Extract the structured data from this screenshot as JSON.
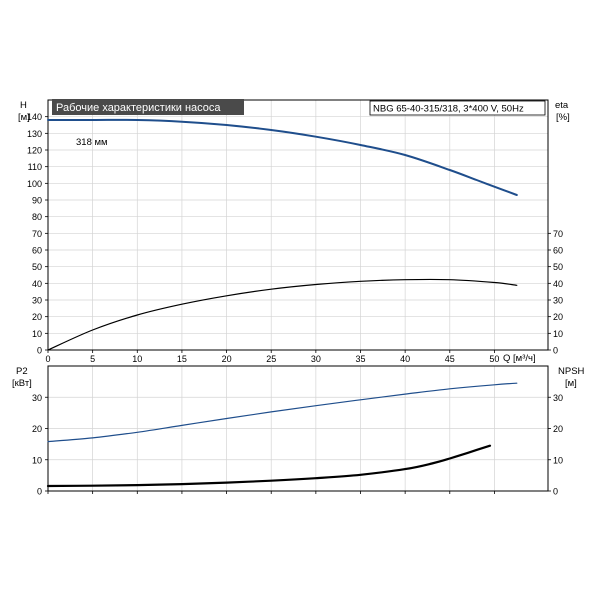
{
  "chart_data": [
    {
      "type": "line",
      "title": "Рабочие характеристики насоса",
      "model_label": "NBG 65-40-315/318, 3*400 V, 50Hz",
      "impeller_label": "318 мм",
      "xlabel": "Q [м³/ч]",
      "x_ticks": [
        0,
        5,
        10,
        15,
        20,
        25,
        30,
        35,
        40,
        45,
        50
      ],
      "xlim": [
        0,
        56
      ],
      "y_left_label": [
        "H",
        "[м]"
      ],
      "y_left_ticks": [
        0,
        10,
        20,
        30,
        40,
        50,
        60,
        70,
        80,
        90,
        100,
        110,
        120,
        130,
        140
      ],
      "y_left_lim": [
        0,
        150
      ],
      "y_right_label": [
        "eta",
        "[%]"
      ],
      "y_right_ticks": [
        0,
        10,
        20,
        30,
        40,
        50,
        60,
        70
      ],
      "y_right_lim": [
        0,
        150
      ],
      "grid": true,
      "series": [
        {
          "axis": "left",
          "color": "#1f4e8c",
          "x": [
            0,
            5,
            10,
            15,
            20,
            25,
            30,
            35,
            40,
            45,
            48,
            50,
            52.5
          ],
          "values": [
            138,
            138,
            138,
            137,
            135,
            132,
            128,
            123,
            117,
            108,
            102,
            98,
            93
          ]
        },
        {
          "axis": "right",
          "color": "#000000",
          "x": [
            0,
            5,
            10,
            15,
            20,
            25,
            30,
            35,
            40,
            45,
            50,
            52.5
          ],
          "values": [
            0,
            12,
            21,
            27.5,
            32.5,
            36.5,
            39.3,
            41.2,
            42.2,
            42.2,
            40.5,
            38.8
          ]
        }
      ]
    },
    {
      "type": "line",
      "xlabel": "",
      "x_ticks": [
        0,
        5,
        10,
        15,
        20,
        25,
        30,
        35,
        40,
        45,
        50
      ],
      "xlim": [
        0,
        56
      ],
      "y_left_label": [
        "P2",
        "[кВт]"
      ],
      "y_left_ticks": [
        0,
        10,
        20,
        30
      ],
      "y_left_lim": [
        0,
        40
      ],
      "y_right_label": [
        "NPSH",
        "[м]"
      ],
      "y_right_ticks": [
        0,
        10,
        20,
        30
      ],
      "y_right_lim": [
        0,
        40
      ],
      "grid": true,
      "series": [
        {
          "axis": "left",
          "color": "#1f4e8c",
          "x": [
            0,
            5,
            10,
            15,
            20,
            25,
            30,
            35,
            40,
            45,
            50,
            52.5
          ],
          "values": [
            15.8,
            17,
            18.8,
            21,
            23.2,
            25.3,
            27.3,
            29.2,
            31,
            32.7,
            34,
            34.5
          ]
        },
        {
          "axis": "right",
          "color": "#000000",
          "x": [
            0,
            5,
            10,
            15,
            20,
            25,
            30,
            35,
            40,
            43,
            45,
            47,
            49.5
          ],
          "values": [
            1.6,
            1.7,
            1.9,
            2.2,
            2.7,
            3.3,
            4.1,
            5.2,
            7,
            8.8,
            10.4,
            12.2,
            14.5
          ]
        }
      ]
    }
  ]
}
